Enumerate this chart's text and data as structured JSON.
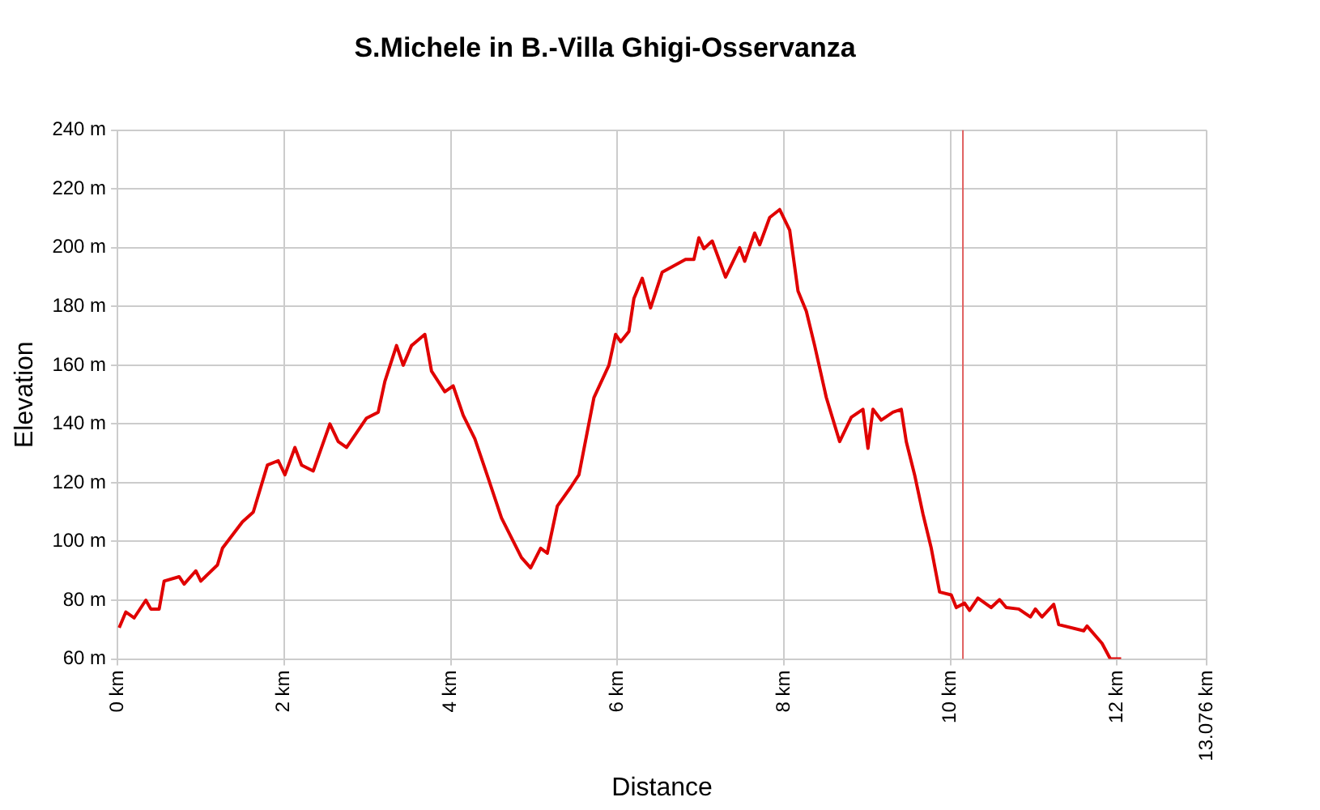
{
  "chart_data": {
    "type": "line",
    "title": "S.Michele in B.-Villa Ghigi-Osservanza",
    "xlabel": "Distance",
    "ylabel": "Elevation",
    "xlim": [
      0,
      13.076
    ],
    "xticks": [
      {
        "value": 0,
        "label": "0 km"
      },
      {
        "value": 2,
        "label": "2 km"
      },
      {
        "value": 4,
        "label": "4 km"
      },
      {
        "value": 6,
        "label": "6 km"
      },
      {
        "value": 8,
        "label": "8 km"
      },
      {
        "value": 10,
        "label": "10 km"
      },
      {
        "value": 12,
        "label": "12 km"
      },
      {
        "value": 13.076,
        "label": "13.076 km"
      }
    ],
    "ylim": [
      60,
      240
    ],
    "yticks": [
      {
        "value": 60,
        "label": "60 m"
      },
      {
        "value": 80,
        "label": "80 m"
      },
      {
        "value": 100,
        "label": "100 m"
      },
      {
        "value": 120,
        "label": "120 m"
      },
      {
        "value": 140,
        "label": "140 m"
      },
      {
        "value": 160,
        "label": "160 m"
      },
      {
        "value": 180,
        "label": "180 m"
      },
      {
        "value": 200,
        "label": "200 m"
      },
      {
        "value": 220,
        "label": "220 m"
      },
      {
        "value": 240,
        "label": "240 m"
      }
    ],
    "grid": true,
    "legend": false,
    "marker": "none",
    "line_style": "solid",
    "ref_lines": [
      {
        "axis": "x",
        "value": 10.15,
        "color": "#e06060"
      }
    ],
    "series": [
      {
        "color": "#e00000",
        "x": [
          0.02,
          0.1,
          0.2,
          0.34,
          0.4,
          0.5,
          0.56,
          0.74,
          0.8,
          0.94,
          1.0,
          1.2,
          1.26,
          1.5,
          1.63,
          1.8,
          1.93,
          2.01,
          2.13,
          2.21,
          2.35,
          2.55,
          2.65,
          2.75,
          2.99,
          3.13,
          3.21,
          3.35,
          3.43,
          3.53,
          3.69,
          3.77,
          3.93,
          4.03,
          4.15,
          4.29,
          4.45,
          4.61,
          4.85,
          4.96,
          5.08,
          5.16,
          5.28,
          5.44,
          5.54,
          5.72,
          5.9,
          5.98,
          6.04,
          6.14,
          6.2,
          6.3,
          6.4,
          6.54,
          6.82,
          6.92,
          6.98,
          7.04,
          7.14,
          7.3,
          7.47,
          7.53,
          7.65,
          7.71,
          7.83,
          7.95,
          8.07,
          8.17,
          8.27,
          8.37,
          8.51,
          8.67,
          8.81,
          8.95,
          9.01,
          9.07,
          9.17,
          9.31,
          9.41,
          9.47,
          9.57,
          9.67,
          9.77,
          9.87,
          10.01,
          10.07,
          10.17,
          10.23,
          10.33,
          10.49,
          10.59,
          10.67,
          10.82,
          10.96,
          11.02,
          11.1,
          11.24,
          11.3,
          11.6,
          11.64,
          11.82,
          11.92,
          12.05
        ],
        "values": [
          70.6,
          76,
          74,
          80,
          77,
          77,
          86.5,
          88,
          85.5,
          90,
          86.5,
          92,
          97.7,
          106.7,
          110,
          126,
          127.5,
          122.7,
          132,
          126,
          124,
          140,
          134,
          132,
          142,
          144,
          154.5,
          166.7,
          160,
          166.7,
          170.5,
          158,
          151,
          153,
          143,
          135,
          121.6,
          108,
          94.5,
          91,
          97.7,
          96,
          112,
          118.4,
          122.7,
          149,
          160,
          170.5,
          168,
          171.5,
          182.7,
          189.6,
          179.5,
          191.7,
          196,
          196,
          203.4,
          199.7,
          202.3,
          190,
          200,
          195.4,
          205,
          201,
          210.3,
          213,
          206,
          185.3,
          178.4,
          166.7,
          149,
          134,
          142.3,
          145,
          131.7,
          145,
          141.3,
          144,
          145,
          134,
          122.7,
          109.4,
          97.7,
          82.8,
          81.8,
          77.5,
          79,
          76.5,
          80.7,
          77.5,
          80.2,
          77.5,
          77,
          74.3,
          77,
          74.3,
          78.6,
          71.7,
          69.6,
          71.2,
          65.3,
          60,
          60
        ]
      }
    ]
  }
}
